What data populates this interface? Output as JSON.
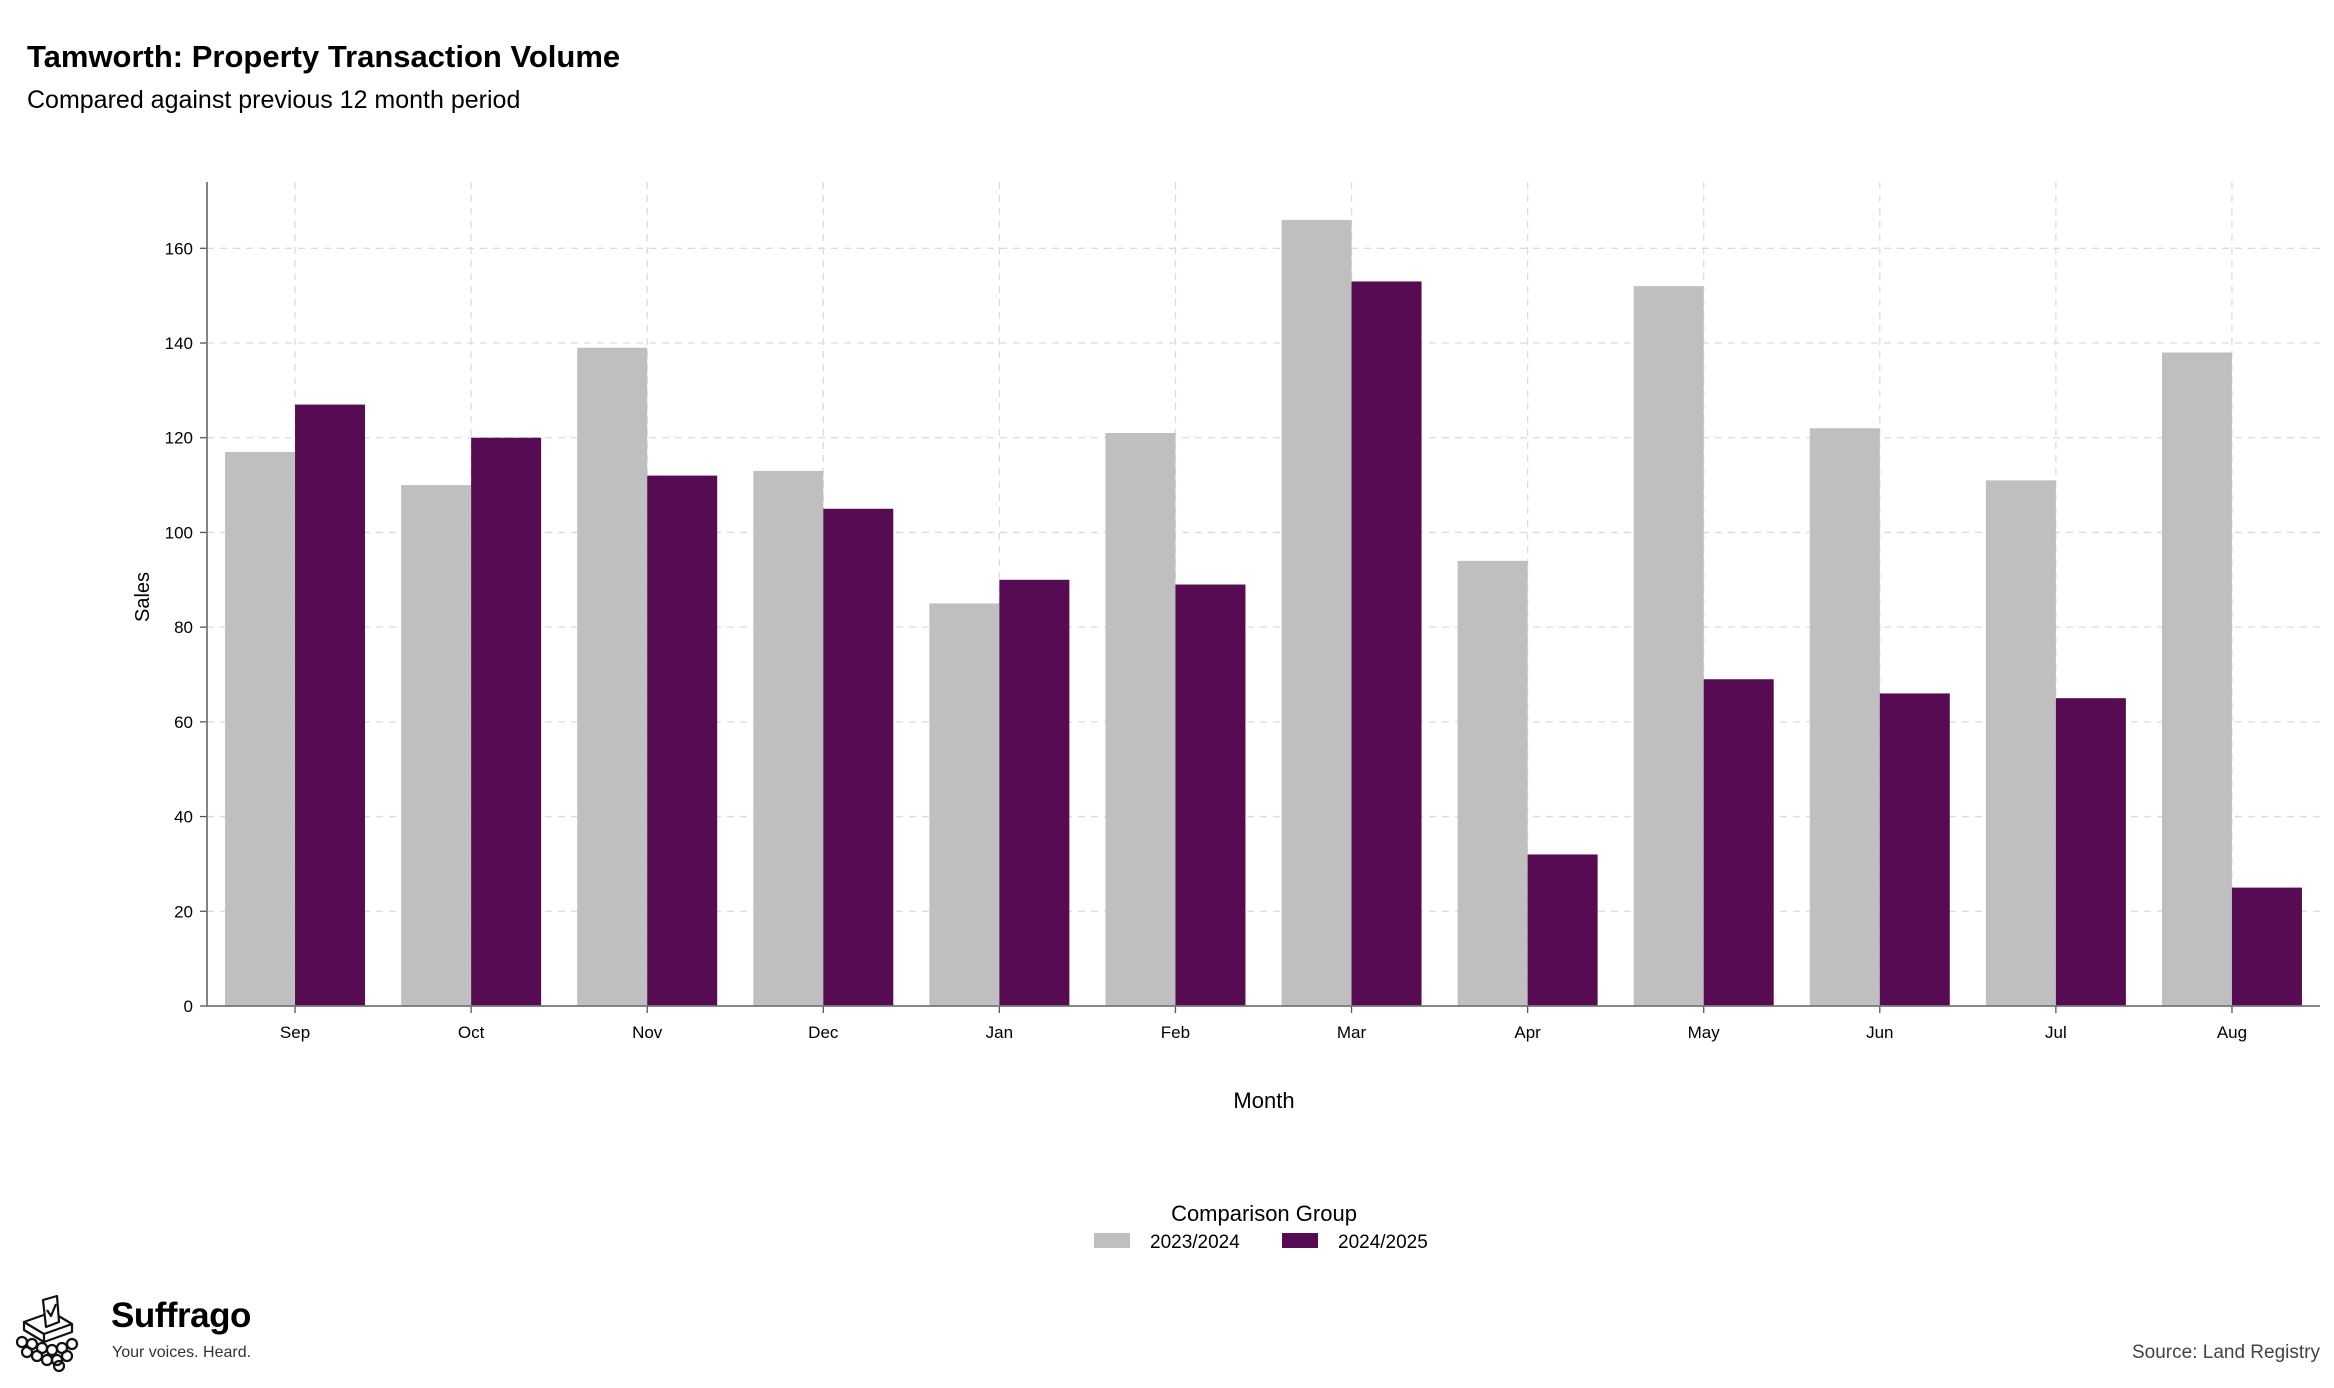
{
  "header": {
    "title": "Tamworth: Property Transaction Volume",
    "subtitle": "Compared against previous 12 month period"
  },
  "chart_data": {
    "type": "bar",
    "title": "Tamworth: Property Transaction Volume",
    "subtitle": "Compared against previous 12 month period",
    "xlabel": "Month",
    "ylabel": "Sales",
    "categories": [
      "Sep",
      "Oct",
      "Nov",
      "Dec",
      "Jan",
      "Feb",
      "Mar",
      "Apr",
      "May",
      "Jun",
      "Jul",
      "Aug"
    ],
    "series": [
      {
        "name": "2023/2024",
        "color": "#bfbfbf",
        "values": [
          117,
          110,
          139,
          113,
          85,
          121,
          166,
          94,
          152,
          122,
          111,
          138
        ]
      },
      {
        "name": "2024/2025",
        "color": "#560b52",
        "values": [
          127,
          120,
          112,
          105,
          90,
          89,
          153,
          32,
          69,
          66,
          65,
          25
        ]
      }
    ],
    "ylim": [
      0,
      174
    ],
    "yticks": [
      0,
      20,
      40,
      60,
      80,
      100,
      120,
      140,
      160
    ],
    "grid": true,
    "legend": {
      "title": "Comparison Group",
      "position": "bottom-center"
    }
  },
  "branding": {
    "name": "Suffrago",
    "tagline": "Your voices. Heard.",
    "icon": "ballot-box-icon"
  },
  "footer": {
    "source": "Source: Land Registry"
  }
}
